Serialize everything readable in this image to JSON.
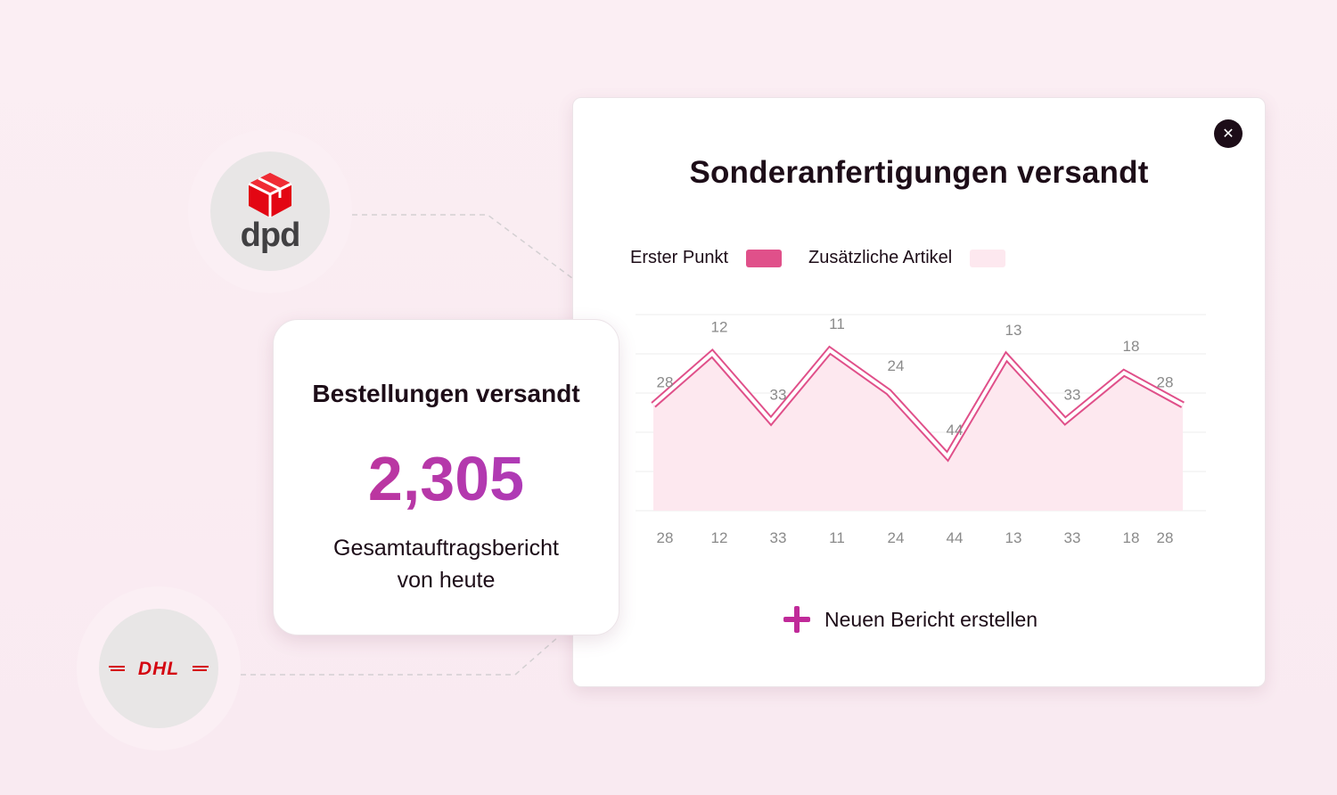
{
  "logos": {
    "dpd": {
      "text": "dpd",
      "cube_color": "#e30613",
      "text_color": "#414042"
    },
    "dhl": {
      "text": "DHL",
      "color": "#d40511"
    }
  },
  "main_card": {
    "title": "Sonderanfertigungen versandt",
    "legend": [
      {
        "label": "Erster Punkt",
        "color": "#e0508a"
      },
      {
        "label": "Zusätzliche Artikel",
        "color": "#fde8ef"
      }
    ],
    "new_report_label": "Neuen Bericht erstellen"
  },
  "summary_card": {
    "title": "Bestellungen versandt",
    "value": "2,305",
    "subtitle_line1": "Gesamtauftragsbericht",
    "subtitle_line2": "von heute"
  },
  "chart_data": {
    "type": "area",
    "categories": [
      "28",
      "12",
      "33",
      "11",
      "24",
      "44",
      "13",
      "33",
      "18",
      "28"
    ],
    "series": [
      {
        "name": "Erster Punkt",
        "values": [
          28,
          12,
          33,
          11,
          24,
          44,
          13,
          33,
          18,
          28
        ]
      }
    ],
    "point_labels": [
      "28",
      "12",
      "33",
      "11",
      "24",
      "44",
      "13",
      "33",
      "18",
      "28"
    ],
    "title": "Sonderanfertigungen versandt",
    "grid": true,
    "colors": {
      "line": "#e0508a",
      "fill": "#fde8ef",
      "grid": "#eeeeee",
      "label": "#8a8a8a"
    }
  }
}
